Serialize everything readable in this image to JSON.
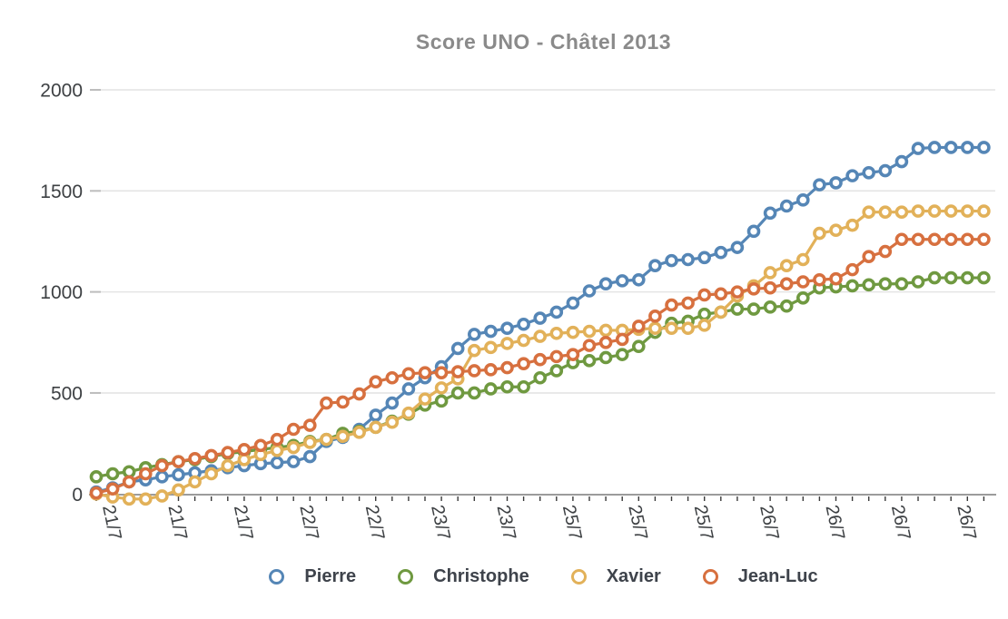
{
  "title": "Score UNO - Châtel 2013",
  "chart_data": {
    "type": "line",
    "title": "Score UNO - Châtel 2013",
    "grid": "horizontal",
    "legend_position": "bottom",
    "marker_style": "open-circle",
    "n_points": 55,
    "x_axis": {
      "tick_labels": [
        "21/7",
        "21/7",
        "21/7",
        "22/7",
        "22/7",
        "23/7",
        "23/7",
        "25/7",
        "25/7",
        "25/7",
        "26/7",
        "26/7",
        "26/7",
        "26/7"
      ],
      "label_every_n_points": 4
    },
    "y_axis": {
      "ticks": [
        0,
        500,
        1000,
        1500,
        2000
      ],
      "range": [
        0,
        2000
      ]
    },
    "colors": {
      "grid": "#e4e4e4",
      "axis_line": "#9b9b9b",
      "tick": "#3a3a3a",
      "axis_text": "#3d4043",
      "title_text": "#8a8a8a"
    },
    "series": [
      {
        "name": "Pierre",
        "color": "#5586b6",
        "values": [
          10,
          30,
          60,
          70,
          85,
          95,
          105,
          115,
          130,
          140,
          150,
          155,
          160,
          185,
          260,
          280,
          320,
          390,
          450,
          520,
          575,
          630,
          720,
          790,
          805,
          820,
          840,
          870,
          900,
          945,
          1005,
          1040,
          1055,
          1060,
          1130,
          1155,
          1160,
          1170,
          1195,
          1220,
          1300,
          1390,
          1425,
          1455,
          1530,
          1540,
          1575,
          1590,
          1600,
          1645,
          1710,
          1715,
          1715,
          1715,
          1715
        ]
      },
      {
        "name": "Christophe",
        "color": "#6f9940",
        "values": [
          85,
          100,
          110,
          130,
          145,
          160,
          170,
          185,
          200,
          210,
          220,
          230,
          240,
          260,
          270,
          300,
          310,
          330,
          360,
          395,
          440,
          460,
          500,
          500,
          520,
          530,
          530,
          575,
          610,
          650,
          660,
          675,
          690,
          730,
          800,
          845,
          855,
          890,
          900,
          915,
          915,
          925,
          930,
          970,
          1020,
          1025,
          1030,
          1035,
          1040,
          1040,
          1050,
          1070,
          1070,
          1070,
          1070
        ]
      },
      {
        "name": "Xavier",
        "color": "#e2b159",
        "values": [
          0,
          -15,
          -25,
          -25,
          -10,
          20,
          60,
          100,
          140,
          170,
          195,
          215,
          230,
          255,
          270,
          285,
          305,
          330,
          355,
          400,
          470,
          525,
          570,
          710,
          725,
          745,
          760,
          780,
          795,
          800,
          805,
          810,
          810,
          815,
          820,
          820,
          820,
          835,
          900,
          980,
          1030,
          1095,
          1130,
          1160,
          1290,
          1305,
          1330,
          1395,
          1395,
          1395,
          1400,
          1400,
          1400,
          1400,
          1400
        ]
      },
      {
        "name": "Jean-Luc",
        "color": "#d7703f",
        "values": [
          5,
          25,
          60,
          100,
          140,
          160,
          175,
          190,
          205,
          220,
          240,
          270,
          320,
          340,
          450,
          455,
          495,
          555,
          575,
          595,
          600,
          600,
          605,
          610,
          615,
          625,
          645,
          665,
          680,
          690,
          735,
          750,
          765,
          830,
          880,
          935,
          945,
          985,
          990,
          1000,
          1015,
          1020,
          1040,
          1050,
          1060,
          1065,
          1110,
          1175,
          1200,
          1260,
          1260,
          1260,
          1260,
          1260,
          1260
        ]
      }
    ]
  }
}
